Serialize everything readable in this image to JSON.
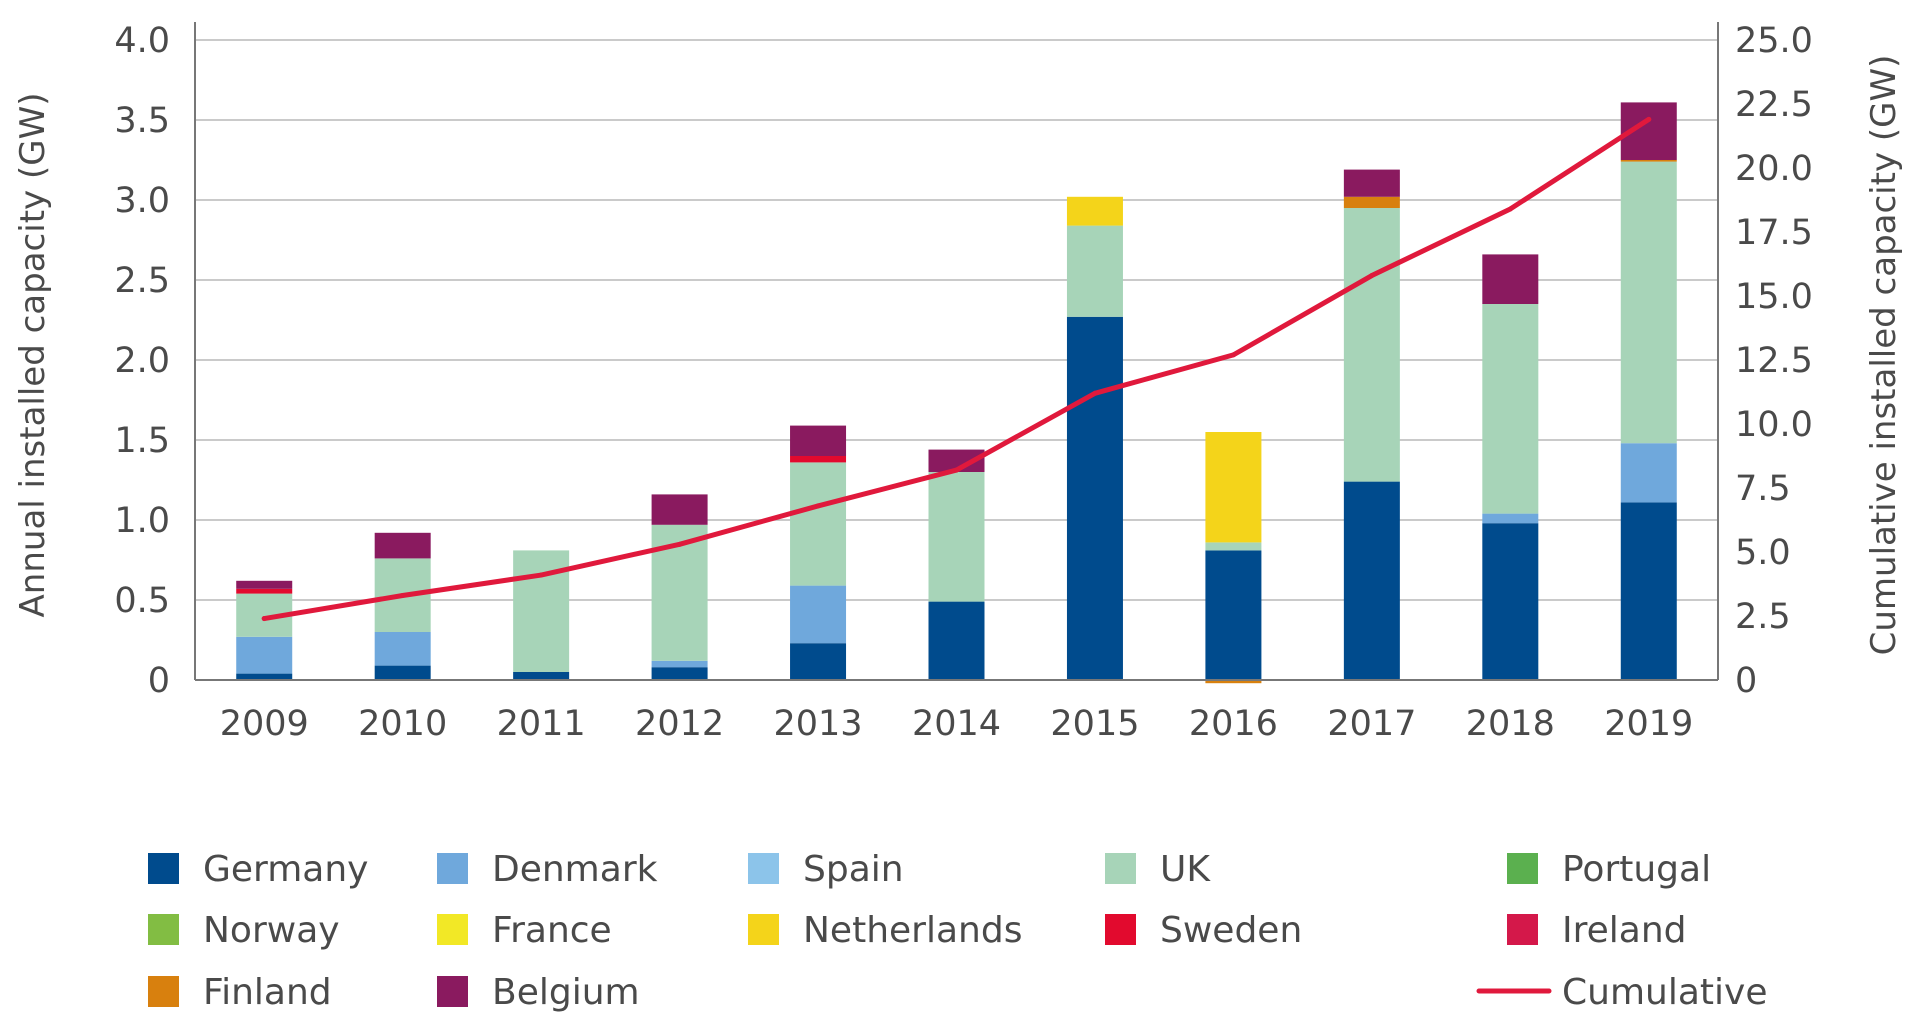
{
  "chart_data": {
    "type": "bar",
    "stacked": true,
    "categories": [
      "2009",
      "2010",
      "2011",
      "2012",
      "2013",
      "2014",
      "2015",
      "2016",
      "2017",
      "2018",
      "2019"
    ],
    "ylabel": "Annual installed capacity (GW)",
    "y2label": "Cumulative installed capacity (GW)",
    "ylim": [
      0,
      4.0
    ],
    "y2lim": [
      0,
      25.0
    ],
    "yticks": [
      "0",
      "0.5",
      "1.0",
      "1.5",
      "2.0",
      "2.5",
      "3.0",
      "3.5",
      "4.0"
    ],
    "y2ticks": [
      "0",
      "2.5",
      "5.0",
      "7.5",
      "10.0",
      "12.5",
      "15.0",
      "17.5",
      "20.0",
      "22.5",
      "25.0"
    ],
    "grid": true,
    "legend_position": "bottom",
    "series": [
      {
        "name": "Germany",
        "color": "#004b8d",
        "values": [
          0.04,
          0.09,
          0.05,
          0.08,
          0.23,
          0.49,
          2.27,
          0.81,
          1.24,
          0.98,
          1.11
        ]
      },
      {
        "name": "Denmark",
        "color": "#6fa8dc",
        "values": [
          0.23,
          0.21,
          0.0,
          0.04,
          0.36,
          0.0,
          0.0,
          0.0,
          0.0,
          0.06,
          0.37
        ]
      },
      {
        "name": "Spain",
        "color": "#8cc4ea",
        "values": [
          0,
          0,
          0,
          0,
          0,
          0,
          0,
          0,
          0,
          0,
          0
        ]
      },
      {
        "name": "UK",
        "color": "#a7d4b8",
        "values": [
          0.27,
          0.46,
          0.76,
          0.85,
          0.77,
          0.81,
          0.57,
          0.05,
          1.71,
          1.31,
          1.76
        ]
      },
      {
        "name": "Portugal",
        "color": "#5bb04f",
        "values": [
          0,
          0,
          0,
          0,
          0,
          0,
          0,
          0,
          0,
          0,
          0
        ]
      },
      {
        "name": "Norway",
        "color": "#82bd43",
        "values": [
          0,
          0,
          0,
          0,
          0,
          0,
          0,
          0,
          0,
          0,
          0
        ]
      },
      {
        "name": "France",
        "color": "#f2e826",
        "values": [
          0,
          0,
          0,
          0,
          0,
          0,
          0,
          0,
          0,
          0,
          0
        ]
      },
      {
        "name": "Netherlands",
        "color": "#f4d41a",
        "values": [
          0.0,
          0.0,
          0.0,
          0.0,
          0.0,
          0.0,
          0.18,
          0.69,
          0.0,
          0.0,
          0.0
        ]
      },
      {
        "name": "Sweden",
        "color": "#e20a2e",
        "values": [
          0.03,
          0.0,
          0.0,
          0.0,
          0.04,
          0.0,
          0.0,
          0.0,
          0.0,
          0.0,
          0.0
        ]
      },
      {
        "name": "Ireland",
        "color": "#d4184a",
        "values": [
          0,
          0,
          0,
          0,
          0,
          0,
          0,
          0,
          0,
          0,
          0
        ]
      },
      {
        "name": "Finland",
        "color": "#d8800e",
        "values": [
          0.0,
          0.0,
          0.0,
          0.0,
          0.0,
          0.0,
          0.0,
          -0.02,
          0.07,
          0.0,
          0.01
        ]
      },
      {
        "name": "Belgium",
        "color": "#8a1a5f",
        "values": [
          0.05,
          0.16,
          0.0,
          0.19,
          0.19,
          0.14,
          0.0,
          0.0,
          0.17,
          0.31,
          0.36
        ]
      }
    ],
    "line_series": {
      "name": "Cumulative",
      "color": "#e0193c",
      "axis": "right",
      "values": [
        2.4,
        3.3,
        4.1,
        5.3,
        6.8,
        8.2,
        11.2,
        12.7,
        15.8,
        18.4,
        21.9
      ]
    }
  }
}
